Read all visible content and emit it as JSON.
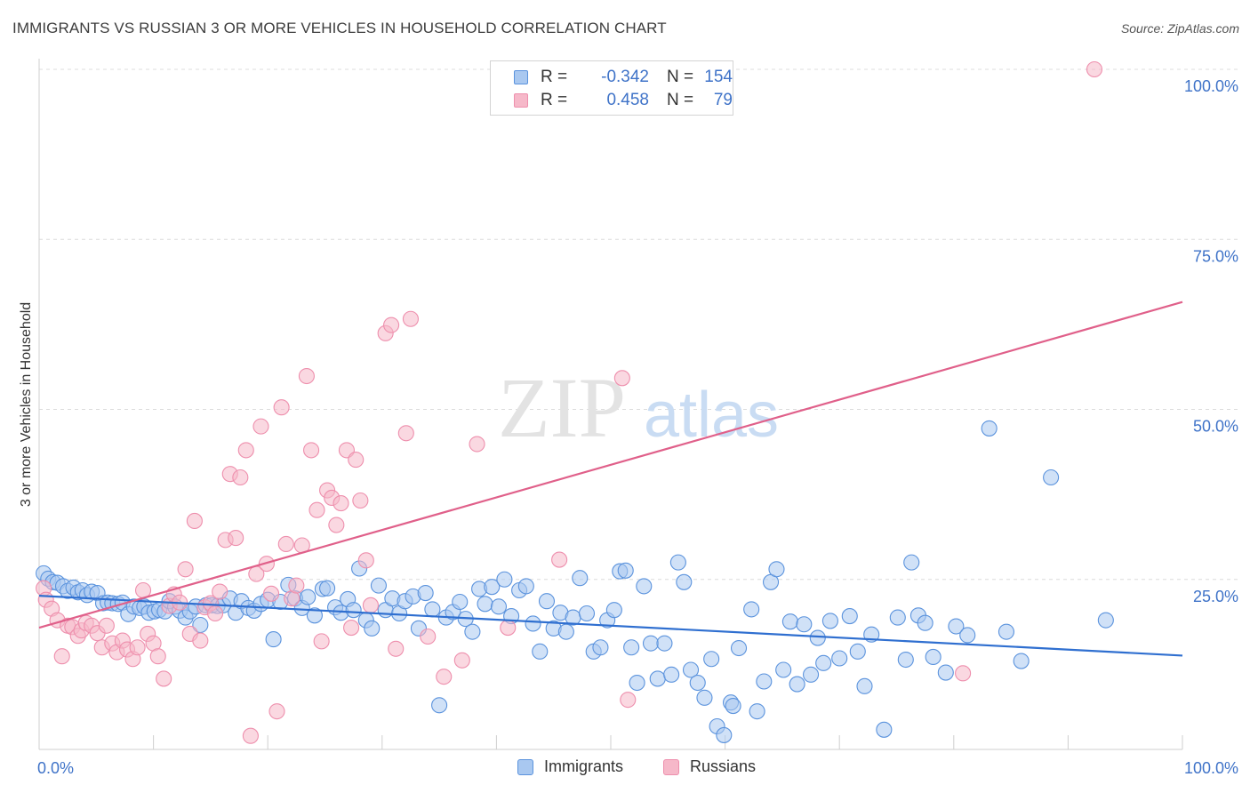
{
  "title": "IMMIGRANTS VS RUSSIAN 3 OR MORE VEHICLES IN HOUSEHOLD CORRELATION CHART",
  "source": "Source: ZipAtlas.com",
  "watermark": {
    "zip": "ZIP",
    "atlas": "atlas"
  },
  "legend_stats": {
    "rows": [
      {
        "r_label": "R =",
        "r_value": "-0.342",
        "n_label": "N =",
        "n_value": "154",
        "color": "#a9c8f0"
      },
      {
        "r_label": "R =",
        "r_value": "0.458",
        "n_label": "N =",
        "n_value": "79",
        "color": "#f6b8c9"
      }
    ]
  },
  "bottom_legend": {
    "immigrants": "Immigrants",
    "russians": "Russians"
  },
  "chart_data": {
    "type": "scatter",
    "title": "IMMIGRANTS VS RUSSIAN 3 OR MORE VEHICLES IN HOUSEHOLD CORRELATION CHART",
    "xlabel": "",
    "ylabel": "3 or more Vehicles in Household",
    "xlim": [
      0,
      100
    ],
    "ylim": [
      0,
      100
    ],
    "x_tick_labels": {
      "min": "0.0%",
      "max": "100.0%"
    },
    "y_tick_labels": [
      "25.0%",
      "50.0%",
      "75.0%",
      "100.0%"
    ],
    "y_ticks": [
      25,
      50,
      75,
      100
    ],
    "grid": true,
    "series": [
      {
        "name": "Immigrants",
        "color": "#5b93dd",
        "fill": "#a9c8f0",
        "trend": {
          "x": [
            0,
            100
          ],
          "y": [
            22.6,
            13.8
          ],
          "color": "#2f6fd0"
        },
        "points": [
          [
            0.4,
            25.9
          ],
          [
            0.8,
            25.1
          ],
          [
            1.2,
            24.6
          ],
          [
            1.6,
            24.5
          ],
          [
            2.1,
            24.0
          ],
          [
            2.5,
            23.3
          ],
          [
            3.0,
            23.8
          ],
          [
            3.4,
            23.1
          ],
          [
            3.8,
            23.4
          ],
          [
            4.2,
            22.7
          ],
          [
            4.6,
            23.2
          ],
          [
            5.1,
            23.0
          ],
          [
            5.6,
            21.5
          ],
          [
            6.0,
            21.6
          ],
          [
            6.4,
            21.5
          ],
          [
            6.9,
            21.4
          ],
          [
            7.3,
            21.6
          ],
          [
            7.8,
            19.9
          ],
          [
            8.3,
            21.0
          ],
          [
            8.8,
            20.8
          ],
          [
            9.2,
            21.0
          ],
          [
            9.6,
            20.1
          ],
          [
            10.1,
            20.3
          ],
          [
            10.5,
            20.5
          ],
          [
            11.0,
            20.3
          ],
          [
            11.4,
            21.8
          ],
          [
            11.9,
            21.0
          ],
          [
            12.3,
            20.4
          ],
          [
            12.8,
            19.4
          ],
          [
            13.2,
            20.3
          ],
          [
            13.7,
            21.0
          ],
          [
            14.1,
            18.3
          ],
          [
            14.6,
            21.2
          ],
          [
            15.1,
            21.2
          ],
          [
            15.6,
            21.1
          ],
          [
            16.1,
            21.2
          ],
          [
            16.7,
            22.2
          ],
          [
            17.2,
            20.1
          ],
          [
            17.7,
            21.8
          ],
          [
            18.3,
            20.8
          ],
          [
            18.8,
            20.4
          ],
          [
            19.4,
            21.4
          ],
          [
            20.0,
            22.0
          ],
          [
            20.5,
            16.2
          ],
          [
            21.1,
            21.7
          ],
          [
            21.8,
            24.2
          ],
          [
            22.4,
            22.2
          ],
          [
            23.0,
            20.8
          ],
          [
            23.5,
            22.4
          ],
          [
            24.1,
            19.7
          ],
          [
            24.8,
            23.6
          ],
          [
            25.2,
            23.7
          ],
          [
            25.9,
            20.9
          ],
          [
            26.4,
            20.1
          ],
          [
            27.0,
            22.1
          ],
          [
            27.5,
            20.5
          ],
          [
            28.0,
            26.6
          ],
          [
            28.6,
            19.0
          ],
          [
            29.1,
            17.8
          ],
          [
            29.7,
            24.1
          ],
          [
            30.3,
            20.5
          ],
          [
            30.9,
            22.2
          ],
          [
            31.5,
            20.0
          ],
          [
            32.0,
            21.8
          ],
          [
            32.7,
            22.5
          ],
          [
            33.2,
            17.8
          ],
          [
            33.8,
            23.0
          ],
          [
            34.4,
            20.6
          ],
          [
            35.0,
            6.5
          ],
          [
            35.6,
            19.4
          ],
          [
            36.2,
            20.2
          ],
          [
            36.8,
            21.7
          ],
          [
            37.3,
            19.2
          ],
          [
            37.9,
            17.3
          ],
          [
            38.5,
            23.6
          ],
          [
            39.0,
            21.4
          ],
          [
            39.6,
            23.9
          ],
          [
            40.2,
            21.0
          ],
          [
            40.7,
            25.0
          ],
          [
            41.3,
            19.6
          ],
          [
            42.0,
            23.4
          ],
          [
            42.6,
            24.0
          ],
          [
            43.2,
            18.5
          ],
          [
            43.8,
            14.4
          ],
          [
            44.4,
            21.8
          ],
          [
            45.0,
            17.8
          ],
          [
            45.6,
            20.1
          ],
          [
            46.1,
            17.3
          ],
          [
            46.7,
            19.4
          ],
          [
            47.3,
            25.2
          ],
          [
            47.9,
            20.0
          ],
          [
            48.5,
            14.4
          ],
          [
            49.1,
            15.0
          ],
          [
            49.7,
            19.0
          ],
          [
            50.3,
            20.5
          ],
          [
            50.8,
            26.2
          ],
          [
            51.3,
            26.3
          ],
          [
            51.8,
            15.0
          ],
          [
            52.3,
            9.8
          ],
          [
            52.9,
            24.0
          ],
          [
            53.5,
            15.6
          ],
          [
            54.1,
            10.4
          ],
          [
            54.7,
            15.6
          ],
          [
            55.3,
            11.0
          ],
          [
            55.9,
            27.5
          ],
          [
            56.4,
            24.6
          ],
          [
            57.0,
            11.7
          ],
          [
            57.6,
            9.8
          ],
          [
            58.2,
            7.6
          ],
          [
            58.8,
            13.3
          ],
          [
            59.3,
            3.4
          ],
          [
            59.9,
            2.1
          ],
          [
            60.5,
            6.9
          ],
          [
            60.7,
            6.4
          ],
          [
            61.2,
            14.9
          ],
          [
            62.3,
            20.6
          ],
          [
            62.8,
            5.6
          ],
          [
            63.4,
            10.0
          ],
          [
            64.0,
            24.6
          ],
          [
            64.5,
            26.5
          ],
          [
            65.1,
            11.7
          ],
          [
            65.7,
            18.8
          ],
          [
            66.3,
            9.6
          ],
          [
            66.9,
            18.4
          ],
          [
            67.5,
            11.0
          ],
          [
            68.1,
            16.4
          ],
          [
            68.6,
            12.7
          ],
          [
            69.2,
            18.9
          ],
          [
            70.0,
            13.4
          ],
          [
            70.9,
            19.6
          ],
          [
            71.6,
            14.4
          ],
          [
            72.2,
            9.3
          ],
          [
            72.8,
            16.9
          ],
          [
            73.9,
            2.9
          ],
          [
            75.1,
            19.4
          ],
          [
            75.8,
            13.2
          ],
          [
            76.3,
            27.5
          ],
          [
            76.9,
            19.7
          ],
          [
            77.5,
            18.6
          ],
          [
            78.2,
            13.6
          ],
          [
            79.3,
            11.3
          ],
          [
            80.2,
            18.1
          ],
          [
            81.2,
            16.8
          ],
          [
            83.1,
            47.2
          ],
          [
            84.6,
            17.3
          ],
          [
            85.9,
            13.0
          ],
          [
            88.5,
            40.0
          ],
          [
            93.3,
            19.0
          ]
        ]
      },
      {
        "name": "Russians",
        "color": "#ee8fad",
        "fill": "#f6b8c9",
        "trend": {
          "x": [
            0,
            100
          ],
          "y": [
            17.9,
            65.8
          ],
          "color": "#e0608a"
        },
        "points": [
          [
            0.4,
            23.7
          ],
          [
            0.6,
            22.0
          ],
          [
            1.1,
            20.7
          ],
          [
            1.6,
            19.0
          ],
          [
            2.0,
            13.7
          ],
          [
            2.5,
            18.2
          ],
          [
            2.9,
            18.0
          ],
          [
            3.4,
            16.7
          ],
          [
            3.7,
            17.5
          ],
          [
            4.1,
            18.6
          ],
          [
            4.6,
            18.2
          ],
          [
            5.1,
            17.1
          ],
          [
            5.5,
            15.0
          ],
          [
            5.9,
            18.2
          ],
          [
            6.4,
            15.6
          ],
          [
            6.8,
            14.3
          ],
          [
            7.3,
            16.0
          ],
          [
            7.7,
            14.7
          ],
          [
            8.2,
            13.3
          ],
          [
            8.6,
            15.0
          ],
          [
            9.1,
            23.4
          ],
          [
            9.5,
            17.0
          ],
          [
            10.0,
            15.6
          ],
          [
            10.4,
            13.7
          ],
          [
            10.9,
            10.4
          ],
          [
            11.4,
            21.1
          ],
          [
            11.8,
            22.8
          ],
          [
            12.3,
            21.6
          ],
          [
            12.8,
            26.5
          ],
          [
            13.2,
            17.0
          ],
          [
            13.6,
            33.6
          ],
          [
            14.1,
            16.0
          ],
          [
            14.5,
            20.9
          ],
          [
            15.0,
            21.5
          ],
          [
            15.4,
            20.0
          ],
          [
            15.8,
            23.2
          ],
          [
            16.3,
            30.8
          ],
          [
            16.7,
            40.5
          ],
          [
            17.2,
            31.1
          ],
          [
            17.6,
            40.0
          ],
          [
            18.1,
            44.0
          ],
          [
            18.5,
            2.0
          ],
          [
            19.0,
            25.8
          ],
          [
            19.4,
            47.5
          ],
          [
            19.9,
            27.3
          ],
          [
            20.3,
            22.9
          ],
          [
            20.8,
            5.6
          ],
          [
            21.2,
            50.3
          ],
          [
            21.6,
            30.2
          ],
          [
            22.1,
            22.2
          ],
          [
            22.5,
            24.1
          ],
          [
            23.0,
            30.0
          ],
          [
            23.4,
            54.9
          ],
          [
            23.8,
            44.0
          ],
          [
            24.3,
            35.2
          ],
          [
            24.7,
            15.9
          ],
          [
            25.2,
            38.1
          ],
          [
            25.6,
            37.0
          ],
          [
            26.0,
            33.0
          ],
          [
            26.4,
            36.2
          ],
          [
            26.9,
            44.0
          ],
          [
            27.3,
            17.9
          ],
          [
            27.7,
            42.6
          ],
          [
            28.1,
            36.6
          ],
          [
            28.6,
            27.8
          ],
          [
            29.0,
            21.2
          ],
          [
            30.3,
            61.2
          ],
          [
            30.8,
            62.4
          ],
          [
            31.2,
            14.8
          ],
          [
            32.1,
            46.5
          ],
          [
            32.5,
            63.3
          ],
          [
            34.0,
            16.6
          ],
          [
            35.4,
            10.7
          ],
          [
            37.0,
            13.1
          ],
          [
            38.3,
            44.9
          ],
          [
            41.0,
            17.9
          ],
          [
            45.5,
            27.9
          ],
          [
            51.0,
            54.6
          ],
          [
            51.5,
            7.3
          ],
          [
            80.8,
            11.2
          ],
          [
            92.3,
            100.0
          ]
        ]
      }
    ]
  }
}
